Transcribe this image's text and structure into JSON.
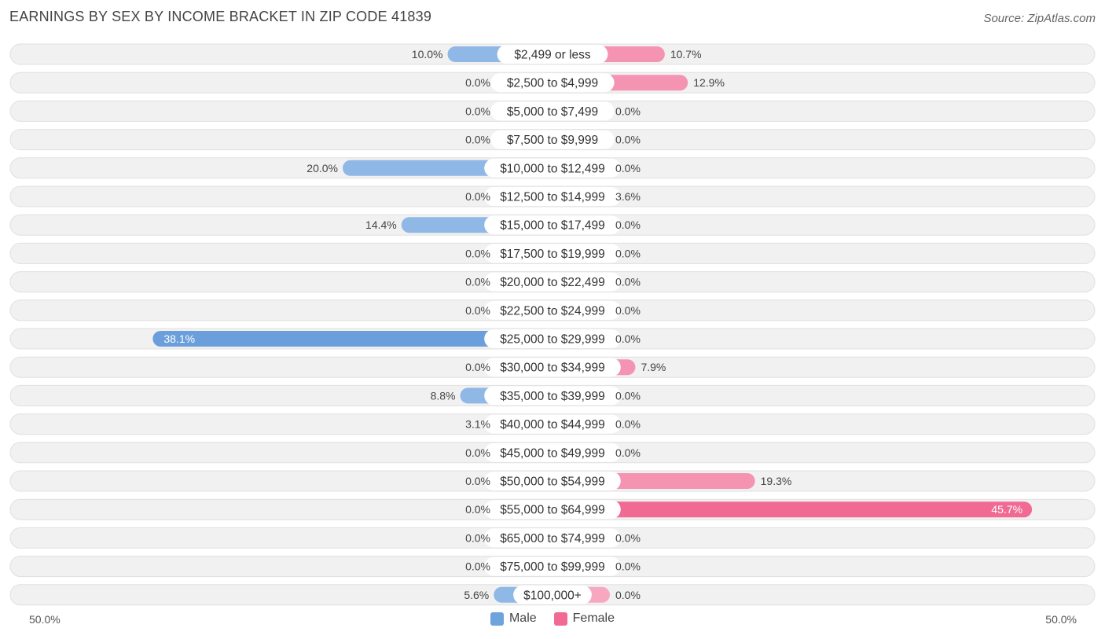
{
  "title": "EARNINGS BY SEX BY INCOME BRACKET IN ZIP CODE 41839",
  "source": "Source: ZipAtlas.com",
  "axis": {
    "left_label": "50.0%",
    "right_label": "50.0%"
  },
  "legend": [
    {
      "name": "Male",
      "color": "#6fa3dc"
    },
    {
      "name": "Female",
      "color": "#f06a94"
    }
  ],
  "colors": {
    "male_light": "#a8c8ee",
    "male_dark": "#6b9fdc",
    "female_light": "#f7a8c0",
    "female_dark": "#f06a94",
    "row_bg": "#f1f1f1",
    "row_border": "#e0e0e0"
  },
  "chart_data": {
    "type": "bar",
    "orientation": "horizontal-diverging",
    "title": "EARNINGS BY SEX BY INCOME BRACKET IN ZIP CODE 41839",
    "xlim": [
      -50,
      50
    ],
    "categories": [
      "$2,499 or less",
      "$2,500 to $4,999",
      "$5,000 to $7,499",
      "$7,500 to $9,999",
      "$10,000 to $12,499",
      "$12,500 to $14,999",
      "$15,000 to $17,499",
      "$17,500 to $19,999",
      "$20,000 to $22,499",
      "$22,500 to $24,999",
      "$25,000 to $29,999",
      "$30,000 to $34,999",
      "$35,000 to $39,999",
      "$40,000 to $44,999",
      "$45,000 to $49,999",
      "$50,000 to $54,999",
      "$55,000 to $64,999",
      "$65,000 to $74,999",
      "$75,000 to $99,999",
      "$100,000+"
    ],
    "series": [
      {
        "name": "Male",
        "values": [
          10.0,
          0.0,
          0.0,
          0.0,
          20.0,
          0.0,
          14.4,
          0.0,
          0.0,
          0.0,
          38.1,
          0.0,
          8.8,
          3.1,
          0.0,
          0.0,
          0.0,
          0.0,
          0.0,
          5.6
        ],
        "labels": [
          "10.0%",
          "0.0%",
          "0.0%",
          "0.0%",
          "20.0%",
          "0.0%",
          "14.4%",
          "0.0%",
          "0.0%",
          "0.0%",
          "38.1%",
          "0.0%",
          "8.8%",
          "3.1%",
          "0.0%",
          "0.0%",
          "0.0%",
          "0.0%",
          "0.0%",
          "5.6%"
        ]
      },
      {
        "name": "Female",
        "values": [
          10.7,
          12.9,
          0.0,
          0.0,
          0.0,
          3.6,
          0.0,
          0.0,
          0.0,
          0.0,
          0.0,
          7.9,
          0.0,
          0.0,
          0.0,
          19.3,
          45.7,
          0.0,
          0.0,
          0.0
        ],
        "labels": [
          "10.7%",
          "12.9%",
          "0.0%",
          "0.0%",
          "0.0%",
          "3.6%",
          "0.0%",
          "0.0%",
          "0.0%",
          "0.0%",
          "0.0%",
          "7.9%",
          "0.0%",
          "0.0%",
          "0.0%",
          "19.3%",
          "45.7%",
          "0.0%",
          "0.0%",
          "0.0%"
        ]
      }
    ]
  }
}
